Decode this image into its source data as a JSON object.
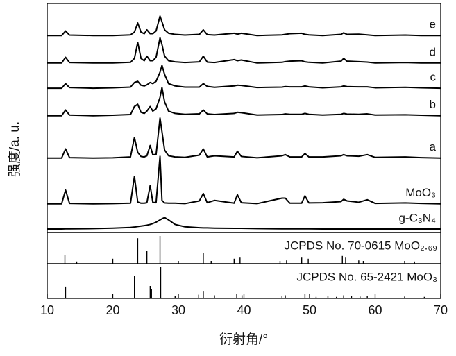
{
  "chart_data": [
    {
      "type": "line",
      "ylabel": "强度/a. u.",
      "color": "#000000",
      "xlim": [
        10,
        70
      ],
      "ylim": [
        0,
        100
      ],
      "x": [
        10,
        12.2,
        12.8,
        13.4,
        17,
        20,
        22.7,
        23.3,
        23.8,
        24.3,
        24.8,
        25.2,
        25.7,
        26.1,
        26.6,
        27.2,
        27.5,
        27.9,
        28.5,
        29.5,
        31,
        33.2,
        33.8,
        34.4,
        35.5,
        38.5,
        39.0,
        39.6,
        42,
        45.8,
        46.3,
        47,
        48.8,
        49.3,
        49.9,
        52,
        54.8,
        55.2,
        55.7,
        57.5,
        58.8,
        60,
        64.6,
        67,
        70
      ],
      "series": [
        {
          "name": "e",
          "values": [
            86,
            86,
            88,
            86.2,
            86,
            86,
            86.3,
            87.5,
            91.5,
            87.5,
            86.8,
            88.5,
            86.8,
            86.8,
            88,
            94.5,
            92,
            88.5,
            87,
            86.5,
            86.2,
            86.5,
            88.5,
            86.4,
            86.2,
            87,
            86.6,
            87,
            86,
            86.3,
            86.5,
            86.8,
            87,
            86.5,
            86.3,
            86,
            86.5,
            87.2,
            86.5,
            86.6,
            86.3,
            86,
            86.2,
            86,
            86
          ]
        },
        {
          "name": "d",
          "values": [
            74,
            74,
            76.5,
            74.2,
            74,
            74,
            74.3,
            76,
            83,
            76,
            75,
            77,
            75,
            75,
            76.5,
            85,
            82,
            77,
            75,
            74.5,
            74.2,
            74.5,
            77,
            74.4,
            74.2,
            75.5,
            75,
            75.3,
            74,
            74.3,
            74.6,
            74.8,
            75,
            74.5,
            74.3,
            74,
            74.8,
            76,
            74.8,
            74.6,
            74.4,
            74,
            74.2,
            74,
            74
          ]
        },
        {
          "name": "c",
          "values": [
            63,
            63,
            65,
            63.3,
            63,
            63.2,
            63.5,
            65.5,
            66,
            64.3,
            64,
            64.5,
            65.5,
            65,
            66,
            70,
            73,
            69,
            65,
            64,
            63.5,
            63.5,
            65,
            63.8,
            63.4,
            64,
            64.3,
            64.2,
            63.3,
            63.5,
            63.7,
            63.6,
            63.6,
            64,
            63.6,
            63.2,
            63.6,
            64,
            63.7,
            63.6,
            63.6,
            63.2,
            63.4,
            63.2,
            63
          ]
        },
        {
          "name": "b",
          "values": [
            51,
            51,
            53.5,
            51.3,
            51,
            51.2,
            51.5,
            55,
            56,
            52.5,
            52,
            53,
            55,
            53,
            54,
            59,
            63.3,
            57,
            53,
            52,
            51.6,
            51.8,
            53.5,
            51.8,
            51.5,
            52,
            52.5,
            52.3,
            51.3,
            51.5,
            51.8,
            51.6,
            51.6,
            52,
            51.6,
            51.3,
            51.6,
            52,
            51.7,
            51.6,
            51.8,
            51.3,
            51.4,
            51.2,
            51
          ]
        },
        {
          "name": "a",
          "values": [
            32.5,
            32.5,
            36.5,
            32.7,
            32.5,
            32.6,
            33,
            41.5,
            35,
            33.2,
            33,
            33.5,
            38,
            34,
            34,
            50,
            44,
            36,
            33.5,
            33,
            32.8,
            33.8,
            36.5,
            33,
            33.5,
            33,
            35.5,
            33.2,
            32.6,
            33.5,
            34,
            33,
            33,
            34.5,
            33,
            33,
            33.5,
            34,
            33.5,
            33.3,
            34,
            32.8,
            33,
            32.7,
            32.5
          ]
        },
        {
          "name": "MoO₃",
          "values": [
            12.5,
            12.5,
            18.5,
            12.7,
            12.5,
            12.6,
            12.8,
            24.5,
            13.3,
            12.8,
            12.8,
            13,
            20.5,
            13.2,
            13,
            33.3,
            14,
            12.9,
            12.8,
            12.8,
            12.6,
            13.8,
            17,
            13,
            14,
            12.8,
            16.5,
            13,
            12.6,
            15,
            15,
            12.8,
            12.8,
            16,
            12.9,
            13,
            13.5,
            14.5,
            13.8,
            13.2,
            14.3,
            12.7,
            12.9,
            12.7,
            12.5
          ]
        },
        {
          "name": "g-C₃N₄",
          "values": [
            1.5,
            1.5,
            1.6,
            1.6,
            1.7,
            1.9,
            2.2,
            2.4,
            2.6,
            2.8,
            3,
            3.2,
            3.5,
            3.9,
            4.5,
            5.5,
            6,
            6.5,
            5.5,
            3.5,
            2.5,
            2.1,
            2,
            2,
            1.9,
            1.8,
            1.8,
            1.8,
            1.7,
            1.6,
            1.6,
            1.6,
            1.6,
            1.6,
            1.6,
            1.5,
            1.5,
            1.5,
            1.5,
            1.5,
            1.5,
            1.5,
            1.5,
            1.5,
            1.5
          ]
        }
      ]
    },
    {
      "type": "stem",
      "label": "JCPDS No. 70-0615 MoO₂.₆₉",
      "color": "#000000",
      "xlim": [
        10,
        70
      ],
      "ylim": [
        0,
        100
      ],
      "x": [
        12.7,
        14.5,
        20,
        23.8,
        25.2,
        27.2,
        30,
        33.8,
        35,
        38.5,
        39.4,
        45.5,
        46.5,
        48.8,
        49.8,
        55,
        55.5,
        57.5,
        58.2,
        64.5,
        66
      ],
      "values": [
        30,
        8,
        18,
        92,
        45,
        100,
        10,
        38,
        10,
        18,
        22,
        10,
        12,
        22,
        18,
        28,
        22,
        12,
        10,
        10,
        8
      ]
    },
    {
      "type": "stem",
      "label": "JCPDS No. 65-2421 MoO₃",
      "color": "#000000",
      "xlim": [
        10,
        70
      ],
      "ylim": [
        0,
        100
      ],
      "xlabel": "衍射角/°",
      "xticks": [
        10,
        20,
        30,
        40,
        50,
        60,
        70
      ],
      "x": [
        12.8,
        23.3,
        25.7,
        25.9,
        27.3,
        29.5,
        33.1,
        33.8,
        35.5,
        38.9,
        39.7,
        45.8,
        46.3,
        49.3,
        51,
        52.8,
        54.1,
        55.2,
        56.4,
        57.7,
        58.8,
        64.5,
        67.5
      ],
      "values": [
        38,
        72,
        40,
        30,
        100,
        8,
        12,
        22,
        10,
        14,
        10,
        8,
        10,
        15,
        5,
        8,
        5,
        10,
        8,
        6,
        8,
        6,
        5
      ]
    }
  ]
}
